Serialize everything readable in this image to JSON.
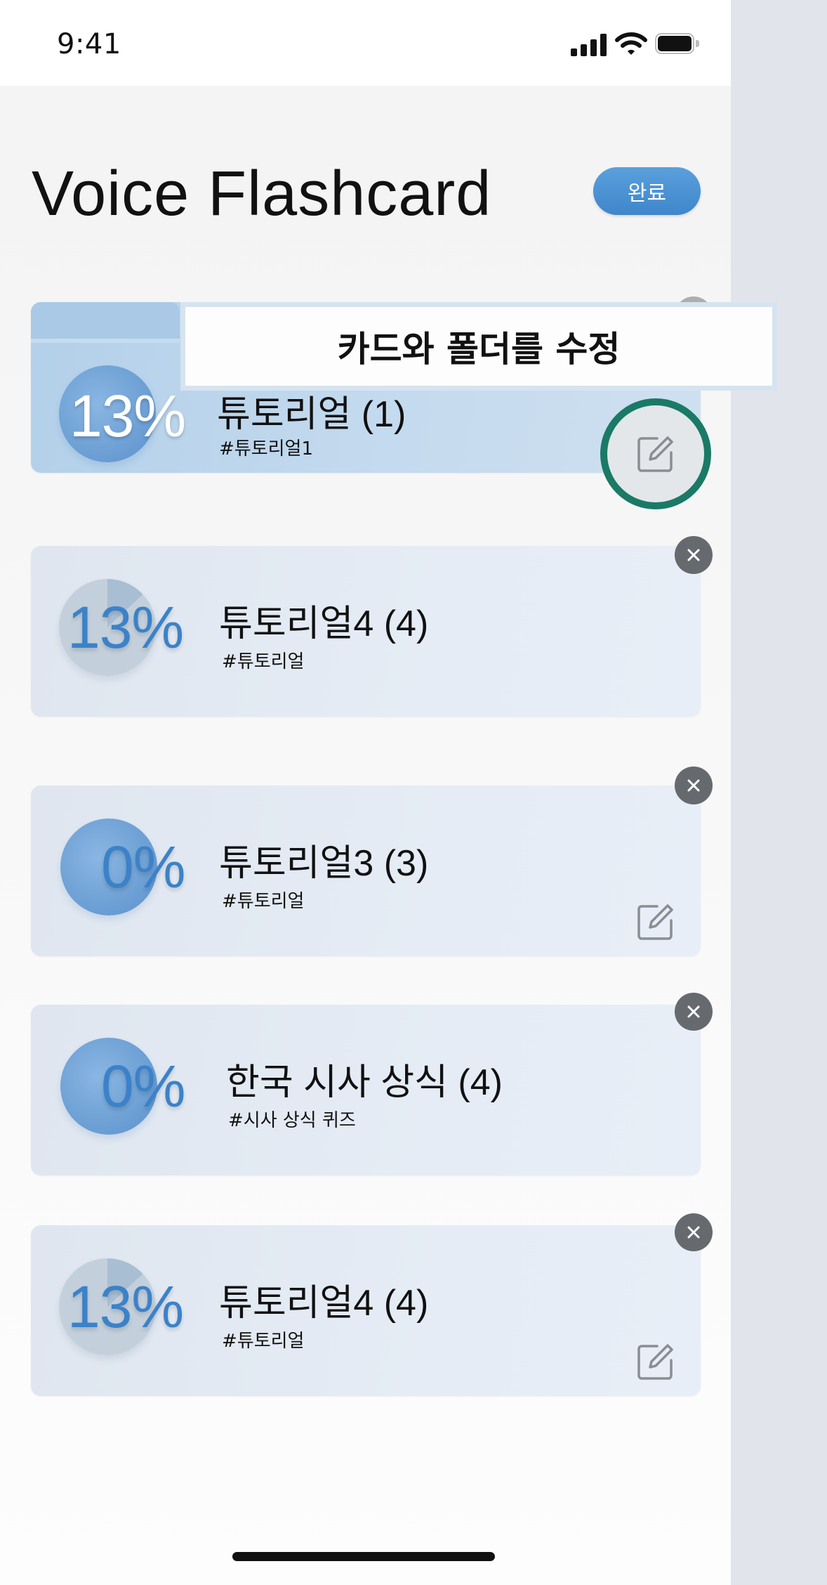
{
  "status_bar": {
    "time": "9:41"
  },
  "header": {
    "title": "Voice Flashcard",
    "done_label": "완료"
  },
  "tooltip": {
    "text": "카드와 폴더를 수정"
  },
  "cards": [
    {
      "percent": "13%",
      "progress": 0.13,
      "title": "튜토리얼 (1)",
      "tag": "#튜토리얼1",
      "active": true
    },
    {
      "percent": "13%",
      "progress": 0.13,
      "title": "튜토리얼4 (4)",
      "tag": "#튜토리얼"
    },
    {
      "percent": "0%",
      "progress": 0.0,
      "title": "튜토리얼3 (3)",
      "tag": "#튜토리얼"
    },
    {
      "percent": "0%",
      "progress": 0.0,
      "title": "한국 시사 상식 (4)",
      "tag": "#시사 상식 퀴즈"
    },
    {
      "percent": "13%",
      "progress": 0.13,
      "title": "튜토리얼4 (4)",
      "tag": "#튜토리얼"
    }
  ],
  "colors": {
    "accent": "#3f86cb",
    "highlight_ring": "#1a7a66",
    "close_button": "#666a6e"
  },
  "icons": {
    "close": "close-icon",
    "edit": "edit-icon"
  }
}
